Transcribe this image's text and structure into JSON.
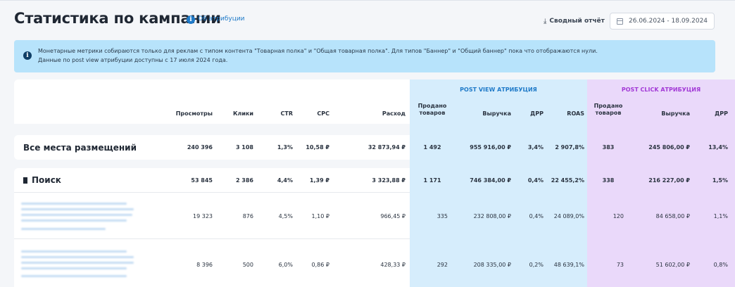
{
  "header": {
    "title": "Статистика по кампании",
    "info_glyph": "i",
    "attribution_link": "Об атрибуции",
    "report_button": "Сводный отчёт",
    "report_icon": "download-icon",
    "date_range": "26.06.2024 - 18.09.2024",
    "date_icon": "calendar-icon"
  },
  "notice": {
    "icon": "info-icon",
    "glyph": "i",
    "line1": "Монетарные метрики собираются только для реклам с типом контента \"Товарная полка\" и \"Общая товарная полка\". Для типов \"Баннер\" и \"Общий баннер\" пока что отображаются нули.",
    "line2": "Данные по post view атрибуции доступны с 17 июля 2024 года.",
    "background": "#b7e3fb"
  },
  "table": {
    "groups": {
      "post_view": "POST VIEW АТРИБУЦИЯ",
      "post_click": "POST CLICK АТРИБУЦИЯ"
    },
    "colors": {
      "post_view_bg": "#d6edfc",
      "post_click_bg": "#ead9fa",
      "post_view_title": "#1f7ac8",
      "post_click_title": "#a238d6"
    },
    "columns": {
      "views": "Просмотры",
      "clicks": "Клики",
      "ctr": "CTR",
      "cpc": "CPC",
      "spend": "Расход",
      "pv_sold_1": "Продано",
      "pv_sold_2": "товаров",
      "pv_revenue": "Выручка",
      "pv_drr": "ДРР",
      "pv_roas": "ROAS",
      "pc_sold_1": "Продано",
      "pc_sold_2": "товаров",
      "pc_revenue": "Выручка",
      "pc_drr": "ДРР"
    },
    "rows": [
      {
        "label": "Все места размещений",
        "views": "240 396",
        "clicks": "3 108",
        "ctr": "1,3%",
        "cpc": "10,58 ₽",
        "spend": "32 873,94 ₽",
        "pv_sold": "1 492",
        "pv_revenue": "955 916,00 ₽",
        "pv_drr": "3,4%",
        "pv_roas": "2 907,8%",
        "pc_sold": "383",
        "pc_revenue": "245 806,00 ₽",
        "pc_drr": "13,4%"
      },
      {
        "label": "Поиск",
        "icon": "bookmark-icon",
        "views": "53 845",
        "clicks": "2 386",
        "ctr": "4,4%",
        "cpc": "1,39 ₽",
        "spend": "3 323,88 ₽",
        "pv_sold": "1 171",
        "pv_revenue": "746 384,00 ₽",
        "pv_drr": "0,4%",
        "pv_roas": "22 455,2%",
        "pc_sold": "338",
        "pc_revenue": "216 227,00 ₽",
        "pc_drr": "1,5%"
      },
      {
        "views": "19 323",
        "clicks": "876",
        "ctr": "4,5%",
        "cpc": "1,10 ₽",
        "spend": "966,45 ₽",
        "pv_sold": "335",
        "pv_revenue": "232 808,00 ₽",
        "pv_drr": "0,4%",
        "pv_roas": "24 089,0%",
        "pc_sold": "120",
        "pc_revenue": "84 658,00 ₽",
        "pc_drr": "1,1%"
      },
      {
        "views": "8 396",
        "clicks": "500",
        "ctr": "6,0%",
        "cpc": "0,86 ₽",
        "spend": "428,33 ₽",
        "pv_sold": "292",
        "pv_revenue": "208 335,00 ₽",
        "pv_drr": "0,2%",
        "pv_roas": "48 639,1%",
        "pc_sold": "73",
        "pc_revenue": "51 602,00 ₽",
        "pc_drr": "0,8%"
      }
    ]
  }
}
